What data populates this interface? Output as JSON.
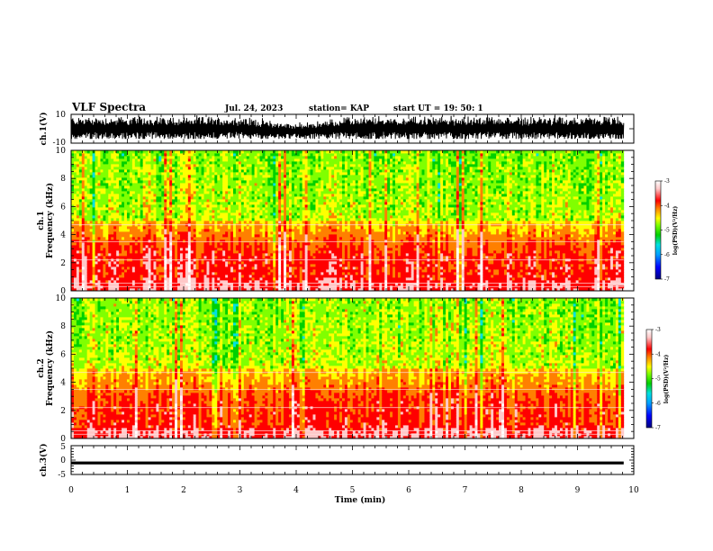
{
  "header": {
    "title": "VLF Spectra",
    "date": "Jul. 24, 2023",
    "station": "station= KAP",
    "start_ut": "start UT =  19: 50: 1"
  },
  "colors": {
    "spectrogram_scale": [
      "#000080",
      "#0000ff",
      "#00a0ff",
      "#00e0e0",
      "#00d000",
      "#80ff00",
      "#ffff00",
      "#ff8000",
      "#ff0000",
      "#ffc8c8",
      "#ffffff"
    ],
    "waveform": "#000000",
    "axes": "#000000"
  },
  "chart_data": [
    {
      "type": "line",
      "id": "ch1-waveform",
      "ylabel": "ch.1(V)",
      "ylim": [
        -10,
        10
      ],
      "y_ticks": [
        "10",
        "-10"
      ],
      "xlim": [
        0,
        10
      ],
      "description_series": "ch.1 voltage waveform",
      "envelope": {
        "max": 9.5,
        "min": -7
      }
    },
    {
      "type": "heatmap",
      "id": "ch1-spectrogram",
      "ylabel": "ch.1\nFrequency (kHz)",
      "ylabel_line1": "ch.1",
      "ylabel_line2": "Frequency (kHz)",
      "ylim": [
        0,
        10
      ],
      "y_ticks": [
        "0",
        "2",
        "4",
        "6",
        "8",
        "10"
      ],
      "xlim": [
        0,
        10.0
      ],
      "colorbar": {
        "label": "log(PSD)(V²/Hz)",
        "min": -7,
        "max": -3,
        "ticks": [
          "-3",
          "-4",
          "-5",
          "-6",
          "-7"
        ]
      },
      "profile_khz_log_psd": [
        [
          0.5,
          -3.6
        ],
        [
          1.0,
          -3.8
        ],
        [
          2.0,
          -3.8
        ],
        [
          3.0,
          -3.9
        ],
        [
          4.0,
          -4.2
        ],
        [
          5.0,
          -4.5
        ],
        [
          7.0,
          -4.6
        ],
        [
          10.0,
          -4.7
        ]
      ]
    },
    {
      "type": "heatmap",
      "id": "ch2-spectrogram",
      "ylabel": "ch.2\nFrequency (kHz)",
      "ylabel_line1": "ch.2",
      "ylabel_line2": "Frequency (kHz)",
      "ylim": [
        0,
        10
      ],
      "y_ticks": [
        "0",
        "2",
        "4",
        "6",
        "8",
        "10"
      ],
      "xlim": [
        0,
        10.0
      ],
      "colorbar": {
        "label": "log(PSD)(V²/Hz)",
        "min": -7,
        "max": -3,
        "ticks": [
          "-3",
          "-4",
          "-5",
          "-6",
          "-7"
        ]
      },
      "profile_khz_log_psd": [
        [
          0.5,
          -3.6
        ],
        [
          1.0,
          -3.9
        ],
        [
          2.0,
          -3.9
        ],
        [
          3.0,
          -4.0
        ],
        [
          4.0,
          -4.3
        ],
        [
          5.0,
          -4.5
        ],
        [
          7.0,
          -4.6
        ],
        [
          10.0,
          -4.7
        ]
      ]
    },
    {
      "type": "line",
      "id": "ch3-waveform",
      "ylabel": "ch.3(V)",
      "ylim": [
        -5,
        5
      ],
      "y_ticks": [
        "5",
        "0",
        "-5"
      ],
      "xlim": [
        0,
        10
      ],
      "envelope": {
        "max": -0.5,
        "min": -1.5
      }
    }
  ],
  "x_axis": {
    "label": "Time (min)",
    "ticks": [
      "0",
      "1",
      "2",
      "3",
      "4",
      "5",
      "6",
      "7",
      "8",
      "9",
      "10"
    ],
    "xlim": [
      0,
      10
    ],
    "data_end_min": 9.82
  }
}
